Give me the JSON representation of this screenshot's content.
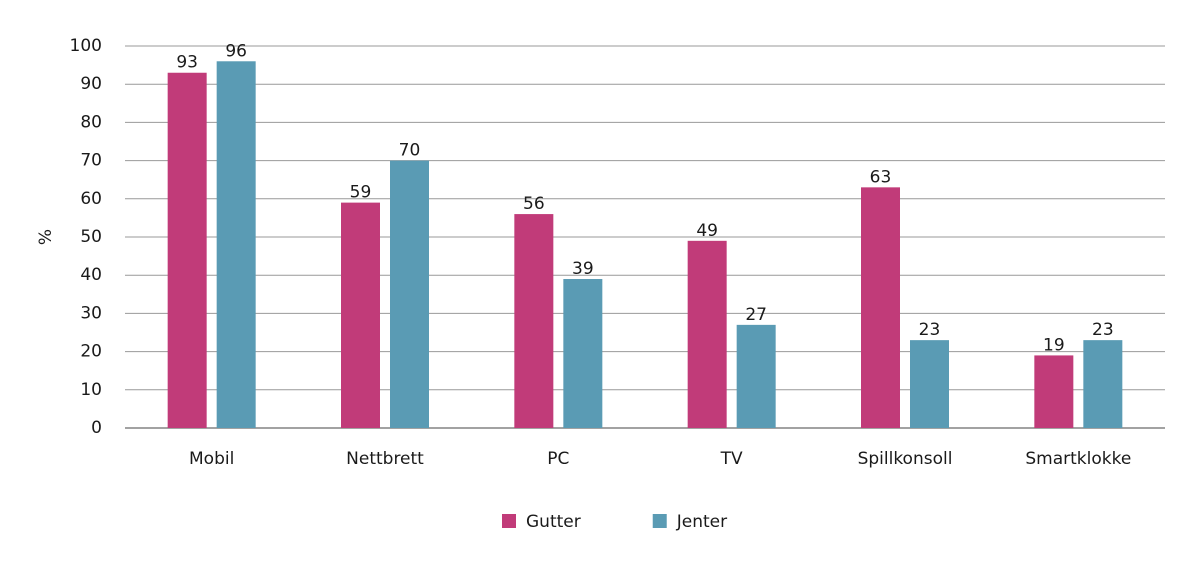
{
  "chart_data": {
    "type": "bar",
    "y_label": "%",
    "categories": [
      "Mobil",
      "Nettbrett",
      "PC",
      "TV",
      "Spillkonsoll",
      "Smartklokke"
    ],
    "series": [
      {
        "name": "Gutter",
        "color": "#c13b79",
        "values": [
          93,
          59,
          56,
          49,
          63,
          19
        ]
      },
      {
        "name": "Jenter",
        "color": "#5a9bb4",
        "values": [
          96,
          70,
          39,
          27,
          23,
          23
        ]
      }
    ],
    "ylim": [
      0,
      100
    ],
    "yticks": [
      0,
      10,
      20,
      30,
      40,
      50,
      60,
      70,
      80,
      90,
      100
    ],
    "grid": true,
    "legend": "bottom"
  }
}
